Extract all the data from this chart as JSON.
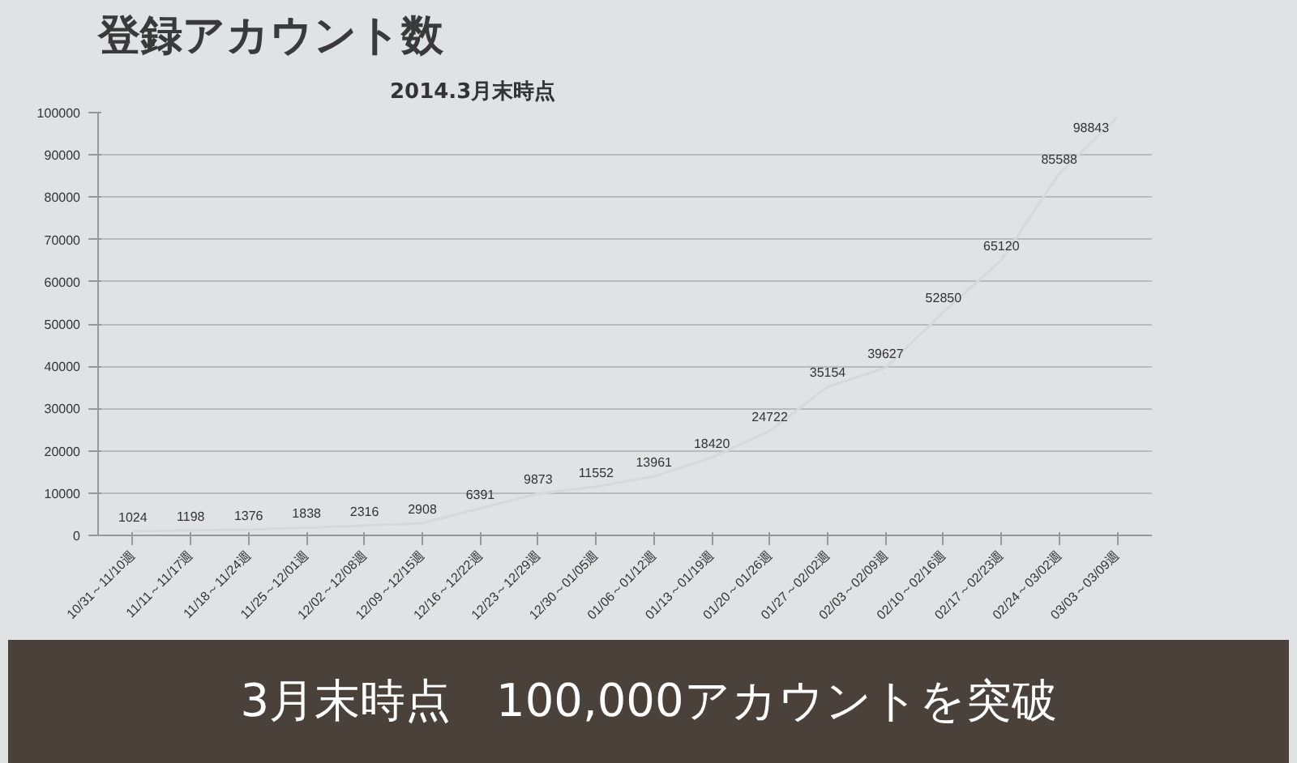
{
  "chart_data": {
    "type": "line",
    "title": "登録アカウント数",
    "subtitle": "2014.3月末時点",
    "categories": [
      "10/31～11/10週",
      "11/11～11/17週",
      "11/18～11/24週",
      "11/25～12/01週",
      "12/02～12/08週",
      "12/09～12/15週",
      "12/16～12/22週",
      "12/23～12/29週",
      "12/30～01/05週",
      "01/06～01/12週",
      "01/13～01/19週",
      "01/20～01/26週",
      "01/27～02/02週",
      "02/03～02/09週",
      "02/10～02/16週",
      "02/17～02/23週",
      "02/24～03/02週",
      "03/03～03/09週"
    ],
    "series": [
      {
        "color": "#d4d9d9",
        "values": [
          1024,
          1198,
          1376,
          1838,
          2316,
          2908,
          6391,
          9873,
          11552,
          13961,
          18420,
          24722,
          35154,
          39627,
          52850,
          65120,
          85588,
          98843
        ]
      }
    ],
    "ylim": [
      0,
      100000
    ],
    "yticks": [
      0,
      10000,
      20000,
      30000,
      40000,
      50000,
      60000,
      70000,
      80000,
      90000,
      100000
    ],
    "grid": "y",
    "marker": "none",
    "line_style": "solid",
    "data_labels": true,
    "annotations": [
      "3月末時点　100,000アカウントを突破"
    ]
  }
}
